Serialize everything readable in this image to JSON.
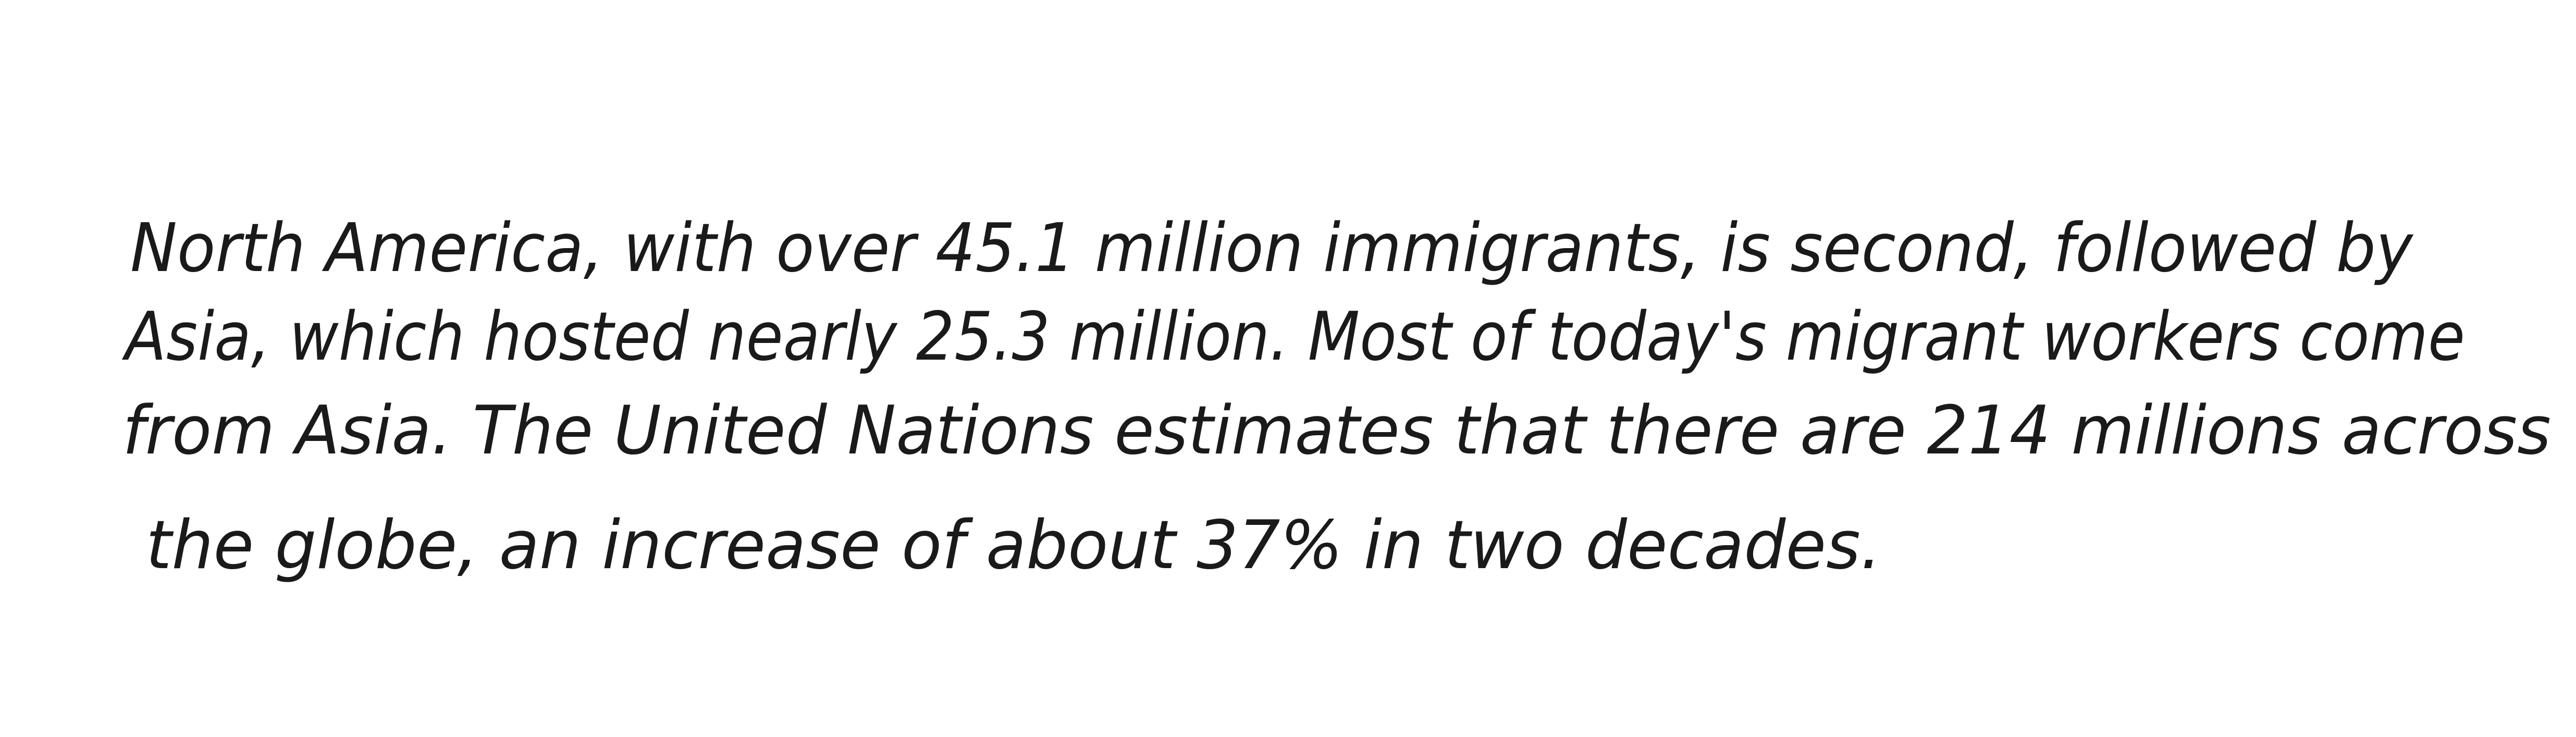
{
  "lines": [
    "North America, with over 45.1 million immigrants, is second, followed by",
    "Asia, which hosted nearly 25.3 million. Most of today's migrant workers come",
    "from Asia. The United Nations estimates that there are 214 millions across",
    "the globe, an increase of about 37% in two decades."
  ]
}
